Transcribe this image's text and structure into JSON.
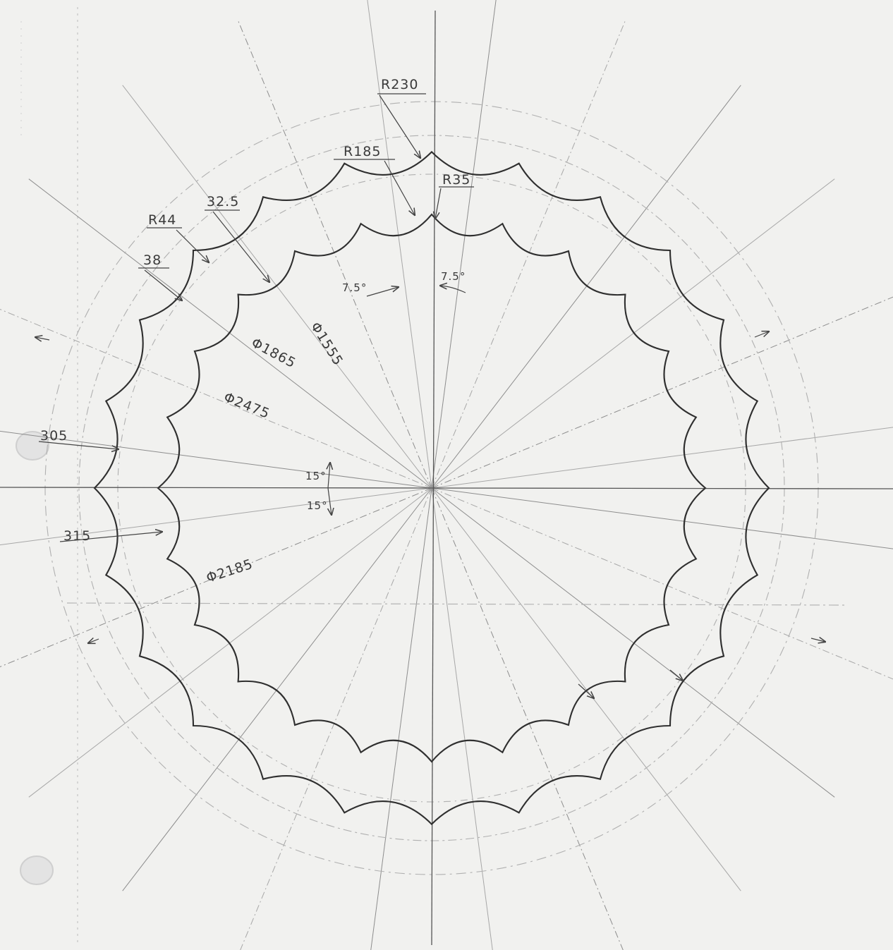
{
  "labels": {
    "r230": "R230",
    "r185": "R185",
    "r35": "R35",
    "d325": "32.5",
    "r44": "R44",
    "d38": "38",
    "a75_left": "7.5°",
    "a75_right": "7.5°",
    "dia1555": "Φ1555",
    "dia1865": "Φ1865",
    "dia2475": "Φ2475",
    "d305": "305",
    "a15_top": "15°",
    "a15_bot": "15°",
    "d315": "315",
    "dia2185": "Φ2185"
  },
  "colors": {
    "paper": "#f1f1ef",
    "outline": "#2f2f2f",
    "construction": "#9a9a9a",
    "text": "#3a3a3a"
  },
  "icons": {
    "binder_hole": "punched-hole"
  }
}
